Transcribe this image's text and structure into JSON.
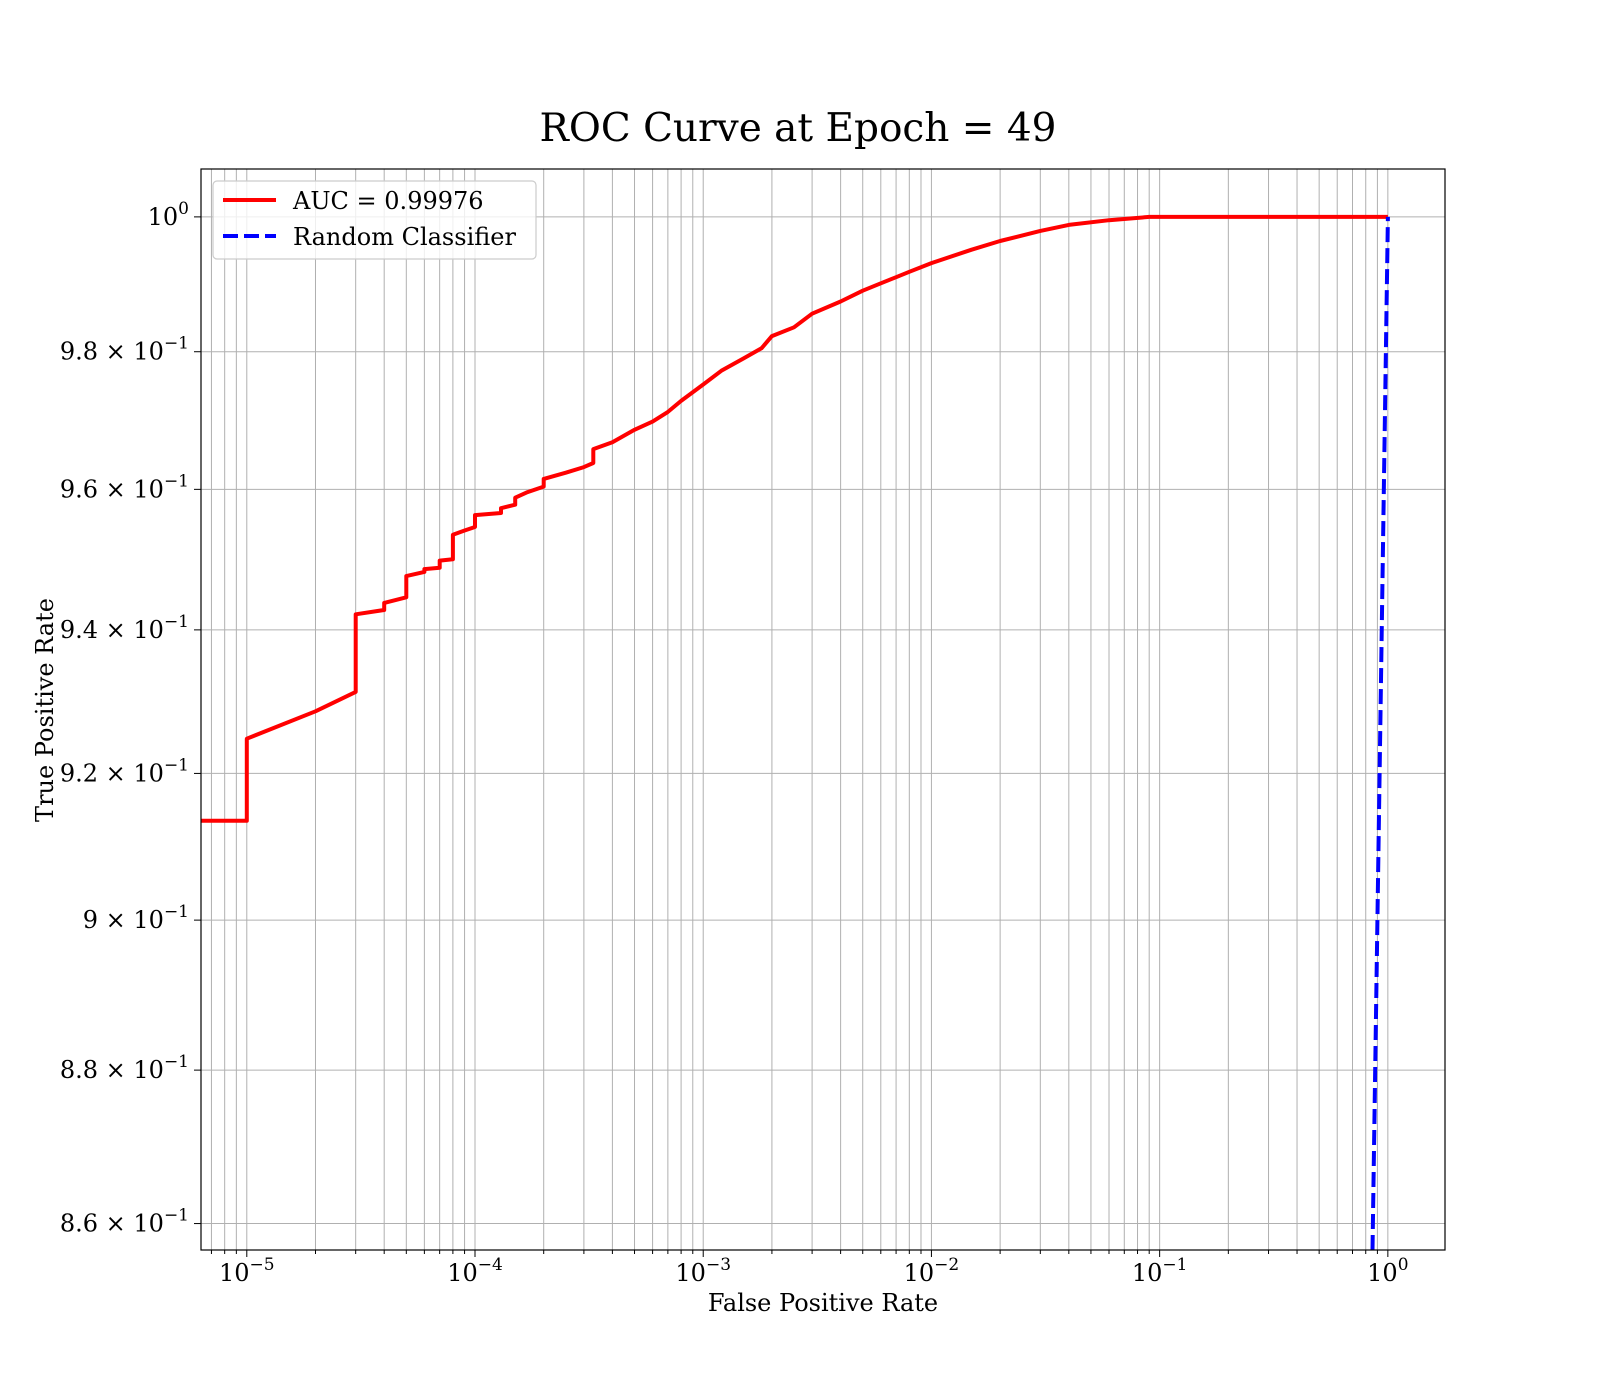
{
  "chart_data": {
    "type": "line",
    "title": "ROC Curve at Epoch = 49",
    "xlabel": "False Positive Rate",
    "ylabel": "True Positive Rate",
    "xscale": "log",
    "yscale": "log",
    "xlim": [
      6.3e-06,
      1.78
    ],
    "ylim": [
      0.8566,
      1.0072
    ],
    "grid": true,
    "grid_minor": true,
    "legend_position": "upper-left",
    "x_ticks": [
      {
        "value": 1e-05,
        "mantissa": "",
        "base": "10",
        "exponent": "−5"
      },
      {
        "value": 0.0001,
        "mantissa": "",
        "base": "10",
        "exponent": "−4"
      },
      {
        "value": 0.001,
        "mantissa": "",
        "base": "10",
        "exponent": "−3"
      },
      {
        "value": 0.01,
        "mantissa": "",
        "base": "10",
        "exponent": "−2"
      },
      {
        "value": 0.1,
        "mantissa": "",
        "base": "10",
        "exponent": "−1"
      },
      {
        "value": 1,
        "mantissa": "",
        "base": "10",
        "exponent": "0"
      }
    ],
    "y_ticks": [
      {
        "value": 1.0,
        "mantissa": "",
        "base": "10",
        "exponent": "0"
      },
      {
        "value": 0.98,
        "mantissa": "9.8 × ",
        "base": "10",
        "exponent": "−1"
      },
      {
        "value": 0.96,
        "mantissa": "9.6 × ",
        "base": "10",
        "exponent": "−1"
      },
      {
        "value": 0.94,
        "mantissa": "9.4 × ",
        "base": "10",
        "exponent": "−1"
      },
      {
        "value": 0.92,
        "mantissa": "9.2 × ",
        "base": "10",
        "exponent": "−1"
      },
      {
        "value": 0.9,
        "mantissa": "9 × ",
        "base": "10",
        "exponent": "−1"
      },
      {
        "value": 0.88,
        "mantissa": "8.8 × ",
        "base": "10",
        "exponent": "−1"
      },
      {
        "value": 0.86,
        "mantissa": "8.6 × ",
        "base": "10",
        "exponent": "−1"
      }
    ],
    "series": [
      {
        "name": "AUC = 0.99976",
        "color": "#ff0000",
        "style": "solid",
        "x": [
          6.3e-06,
          1e-05,
          1e-05,
          2e-05,
          3e-05,
          3e-05,
          4e-05,
          4e-05,
          5e-05,
          5e-05,
          6e-05,
          6e-05,
          7e-05,
          7e-05,
          8e-05,
          8e-05,
          9e-05,
          0.0001,
          0.0001,
          0.00013,
          0.00013,
          0.00015,
          0.00015,
          0.00017,
          0.0002,
          0.0002,
          0.00025,
          0.0003,
          0.00033,
          0.00033,
          0.0004,
          0.0005,
          0.0006,
          0.0007,
          0.0008,
          0.001,
          0.0012,
          0.0015,
          0.0018,
          0.002,
          0.0025,
          0.003,
          0.004,
          0.005,
          0.006,
          0.007,
          0.008,
          0.01,
          0.015,
          0.02,
          0.03,
          0.04,
          0.06,
          0.09,
          0.15,
          0.3,
          0.5,
          1.0
        ],
        "y": [
          0.9135,
          0.9135,
          0.9248,
          0.9286,
          0.9313,
          0.9422,
          0.9428,
          0.9438,
          0.9446,
          0.9476,
          0.9482,
          0.9486,
          0.9488,
          0.9498,
          0.95,
          0.9535,
          0.9541,
          0.9546,
          0.9563,
          0.9566,
          0.9573,
          0.9578,
          0.9588,
          0.9596,
          0.9604,
          0.9615,
          0.9624,
          0.9632,
          0.9638,
          0.9658,
          0.9668,
          0.9686,
          0.9698,
          0.9712,
          0.9728,
          0.9752,
          0.9772,
          0.979,
          0.9805,
          0.9823,
          0.9836,
          0.9856,
          0.9874,
          0.989,
          0.9901,
          0.991,
          0.9918,
          0.9931,
          0.9951,
          0.9964,
          0.9979,
          0.9988,
          0.9995,
          1.0,
          1.0,
          1.0,
          1.0,
          1.0
        ]
      },
      {
        "name": "Random Classifier",
        "color": "#0000ff",
        "style": "dashed",
        "x": [
          0.8566,
          1.0
        ],
        "y": [
          0.8566,
          1.0
        ]
      }
    ]
  }
}
